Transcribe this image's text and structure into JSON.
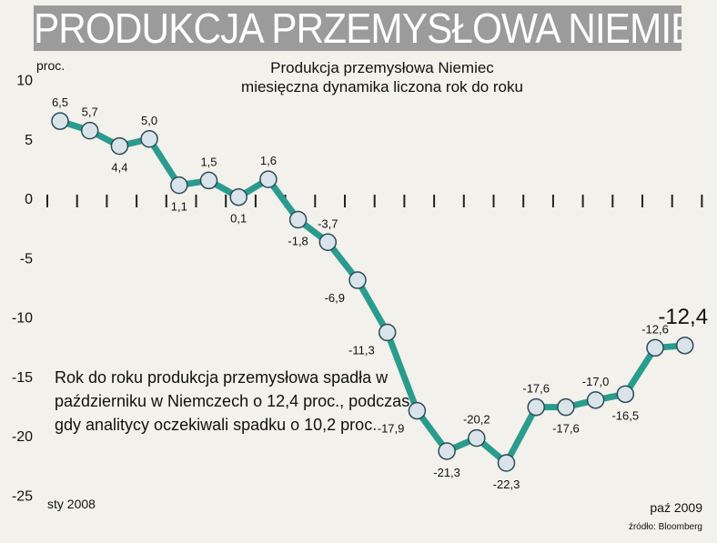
{
  "banner": "PRODUKCJA PRZEMYSŁOWA NIEMIEC",
  "chart_data": {
    "type": "line",
    "title": "Produkcja przemysłowa Niemiec",
    "subtitle": "miesięczna dynamika liczona rok do roku",
    "ylabel": "proc.",
    "ylim": [
      -25,
      10
    ],
    "yticks": [
      "10",
      "5",
      "0",
      "-5",
      "-10",
      "-15",
      "-20",
      "-25"
    ],
    "x_start_label": "sty 2008",
    "x_end_label": "paź 2009",
    "values": [
      6.5,
      5.7,
      4.4,
      5.0,
      1.1,
      1.5,
      0.1,
      1.6,
      -1.8,
      -3.7,
      -6.9,
      -11.3,
      -17.9,
      -21.3,
      -20.2,
      -22.3,
      -17.6,
      -17.6,
      -17.0,
      -16.5,
      -12.6,
      -12.4
    ],
    "labels": [
      "6,5",
      "5,7",
      "4,4",
      "5,0",
      "1,1",
      "1,5",
      "0,1",
      "1,6",
      "-1,8",
      "-3,7",
      "-6,9",
      "-11,3",
      "-17,9",
      "-21,3",
      "-20,2",
      "-22,3",
      "-17,6",
      "-17,6",
      "-17,0",
      "-16,5",
      "-12,6",
      "-12,4"
    ],
    "colors": {
      "line": "#2a9c8e",
      "marker_fill": "#d8e4ea",
      "marker_stroke": "#2d4b57"
    }
  },
  "annotation": "Rok do roku produkcja przemysłowa spadła w październiku w Niemczech o 12,4 proc., podczas gdy analitycy oczekiwali spadku o 10,2 proc.",
  "source": "źródło: Bloomberg"
}
